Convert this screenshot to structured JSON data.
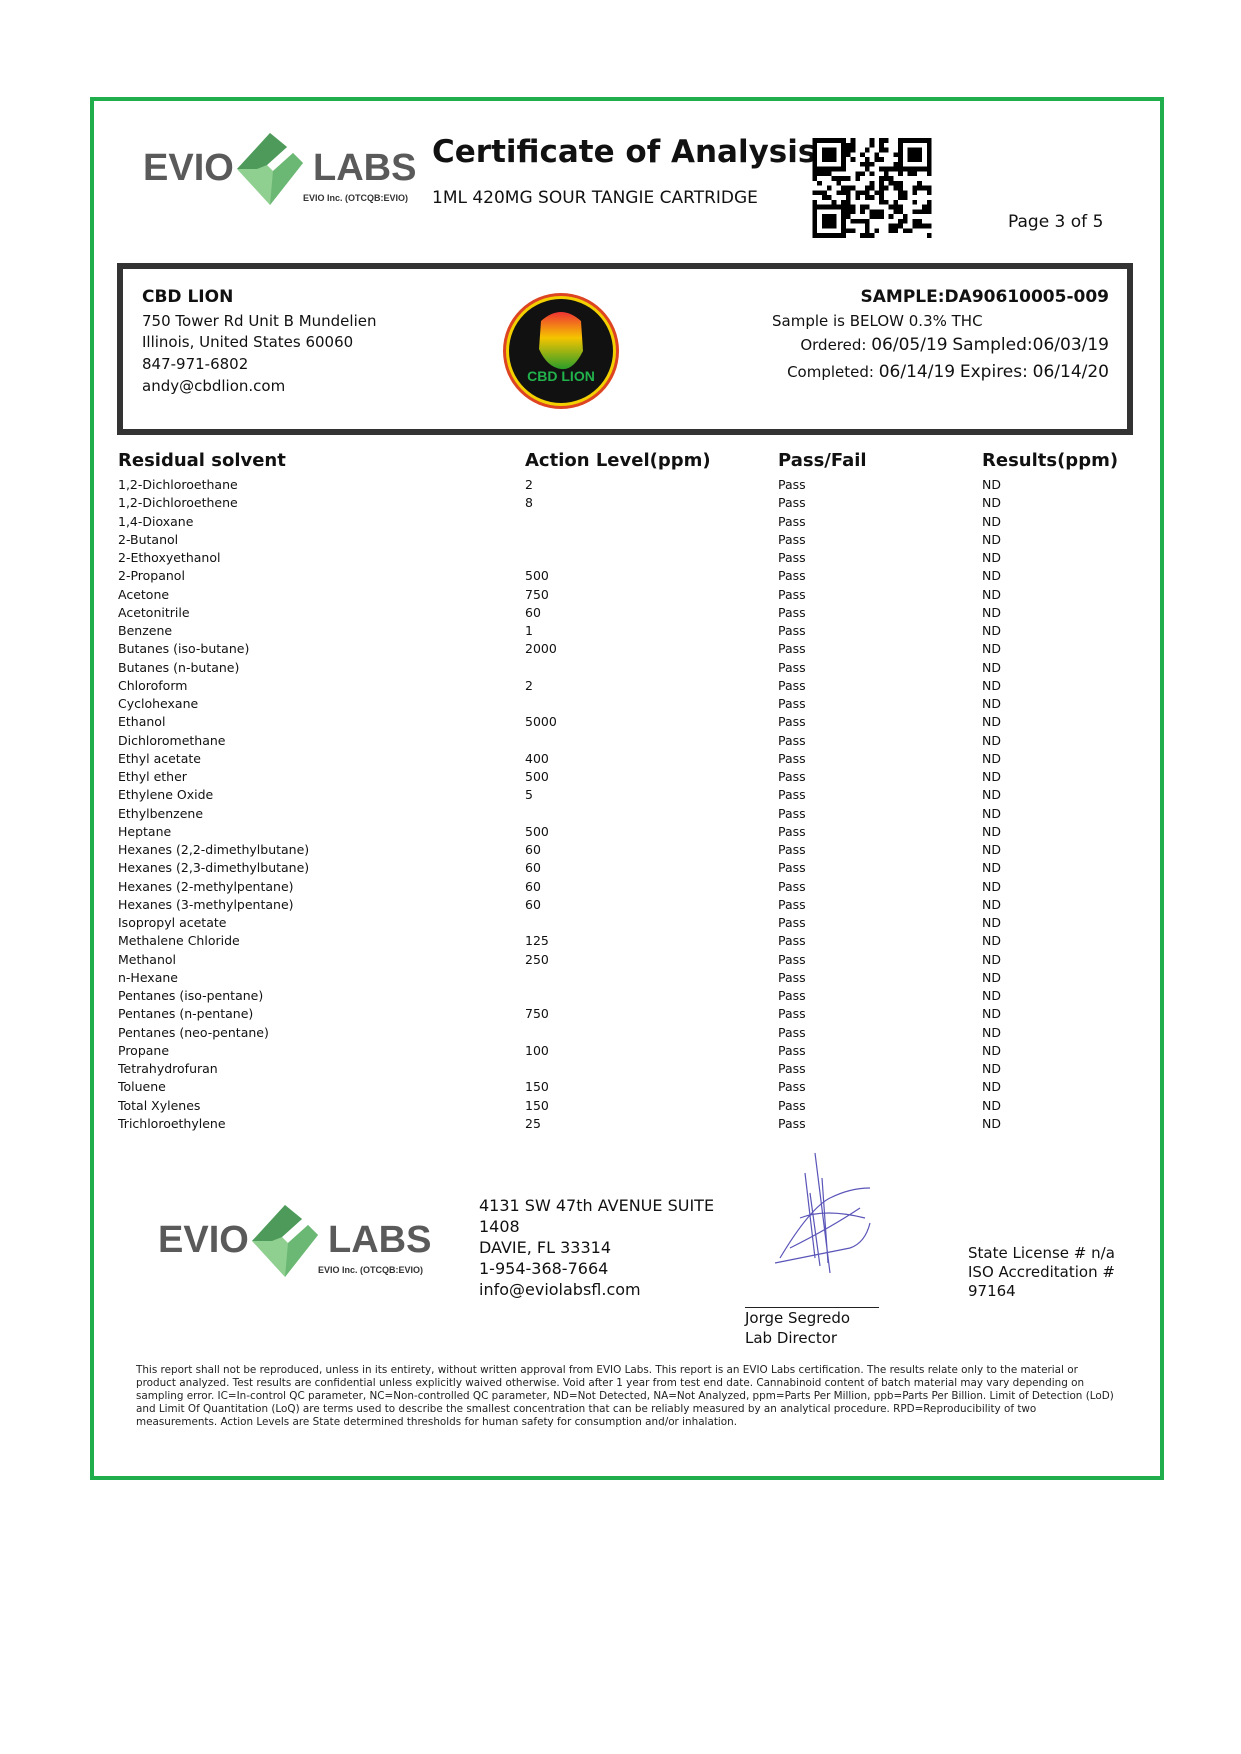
{
  "header": {
    "logo_text": "EVIO LABS",
    "logo_subtext": "EVIO Inc. (OTCQB:EVIO)",
    "title": "Certificate of Analysis",
    "product": "1ML 420MG SOUR TANGIE CARTRIDGE",
    "page": "Page 3 of 5"
  },
  "client": {
    "name": "CBD LION",
    "address1": "750 Tower Rd Unit B Mundelien",
    "address2": "Illinois, United States 60060",
    "phone": "847-971-6802",
    "email": "andy@cbdlion.com",
    "logo_text": "CBD LION"
  },
  "sample": {
    "id": "SAMPLE:DA90610005-009",
    "thc_status": "Sample is BELOW 0.3% THC",
    "ordered_label": "Ordered:",
    "ordered": "06/05/19",
    "sampled_label": "Sampled:",
    "sampled": "06/03/19",
    "completed_label": "Completed:",
    "completed": "06/14/19",
    "expires_label": "Expires:",
    "expires": "06/14/20"
  },
  "table": {
    "headers": [
      "Residual solvent",
      "Action Level(ppm)",
      "Pass/Fail",
      "Results(ppm)"
    ],
    "rows": [
      [
        "1,2-Dichloroethane",
        "2",
        "Pass",
        "ND"
      ],
      [
        "1,2-Dichloroethene",
        "8",
        "Pass",
        "ND"
      ],
      [
        "1,4-Dioxane",
        "",
        "Pass",
        "ND"
      ],
      [
        "2-Butanol",
        "",
        "Pass",
        "ND"
      ],
      [
        "2-Ethoxyethanol",
        "",
        "Pass",
        "ND"
      ],
      [
        "2-Propanol",
        "500",
        "Pass",
        "ND"
      ],
      [
        "Acetone",
        "750",
        "Pass",
        "ND"
      ],
      [
        "Acetonitrile",
        "60",
        "Pass",
        "ND"
      ],
      [
        "Benzene",
        "1",
        "Pass",
        "ND"
      ],
      [
        "Butanes (iso-butane)",
        "2000",
        "Pass",
        "ND"
      ],
      [
        "Butanes (n-butane)",
        "",
        "Pass",
        "ND"
      ],
      [
        "Chloroform",
        "2",
        "Pass",
        "ND"
      ],
      [
        "Cyclohexane",
        "",
        "Pass",
        "ND"
      ],
      [
        "Ethanol",
        "5000",
        "Pass",
        "ND"
      ],
      [
        "Dichloromethane",
        "",
        "Pass",
        "ND"
      ],
      [
        "Ethyl acetate",
        "400",
        "Pass",
        "ND"
      ],
      [
        "Ethyl ether",
        "500",
        "Pass",
        "ND"
      ],
      [
        "Ethylene Oxide",
        "5",
        "Pass",
        "ND"
      ],
      [
        "Ethylbenzene",
        "",
        "Pass",
        "ND"
      ],
      [
        "Heptane",
        "500",
        "Pass",
        "ND"
      ],
      [
        "Hexanes (2,2-dimethylbutane)",
        "60",
        "Pass",
        "ND"
      ],
      [
        "Hexanes (2,3-dimethylbutane)",
        "60",
        "Pass",
        "ND"
      ],
      [
        "Hexanes (2-methylpentane)",
        "60",
        "Pass",
        "ND"
      ],
      [
        "Hexanes (3-methylpentane)",
        "60",
        "Pass",
        "ND"
      ],
      [
        "Isopropyl acetate",
        "",
        "Pass",
        "ND"
      ],
      [
        "Methalene Chloride",
        "125",
        "Pass",
        "ND"
      ],
      [
        "Methanol",
        "250",
        "Pass",
        "ND"
      ],
      [
        "n-Hexane",
        "",
        "Pass",
        "ND"
      ],
      [
        "Pentanes (iso-pentane)",
        "",
        "Pass",
        "ND"
      ],
      [
        "Pentanes (n-pentane)",
        "750",
        "Pass",
        "ND"
      ],
      [
        "Pentanes (neo-pentane)",
        "",
        "Pass",
        "ND"
      ],
      [
        "Propane",
        "100",
        "Pass",
        "ND"
      ],
      [
        "Tetrahydrofuran",
        "",
        "Pass",
        "ND"
      ],
      [
        "Toluene",
        "150",
        "Pass",
        "ND"
      ],
      [
        "Total Xylenes",
        "150",
        "Pass",
        "ND"
      ],
      [
        "Trichloroethylene",
        "25",
        "Pass",
        "ND"
      ]
    ]
  },
  "footer": {
    "address": [
      "4131 SW 47th AVENUE SUITE",
      "1408",
      "DAVIE, FL 33314",
      "1-954-368-7664",
      "info@eviolabsfl.com"
    ],
    "signer_name": "Jorge Segredo",
    "signer_title": "Lab Director",
    "license": [
      "State License # n/a",
      "ISO Accreditation #",
      "97164"
    ],
    "disclaimer": "This report shall not be reproduced, unless in its entirety, without written approval from EVIO Labs. This report is an EVIO Labs certification. The results relate only to the material or product analyzed. Test results are confidential unless explicitly waived otherwise. Void after 1 year from test end date. Cannabinoid content of batch material may vary depending on sampling error. IC=In-control QC parameter, NC=Non-controlled QC parameter, ND=Not Detected, NA=Not Analyzed, ppm=Parts Per Million, ppb=Parts Per Billion. Limit of Detection (LoD) and Limit Of Quantitation (LoQ) are terms used to describe the smallest concentration that can be reliably measured by an analytical procedure. RPD=Reproducibility of two measurements. Action Levels are State determined thresholds for human safety for consumption and/or inhalation."
  },
  "colors": {
    "border": "#1fae4b",
    "logo_green": "#5fae6a",
    "logo_gray": "#5a5a5a",
    "box_border": "#333333"
  }
}
